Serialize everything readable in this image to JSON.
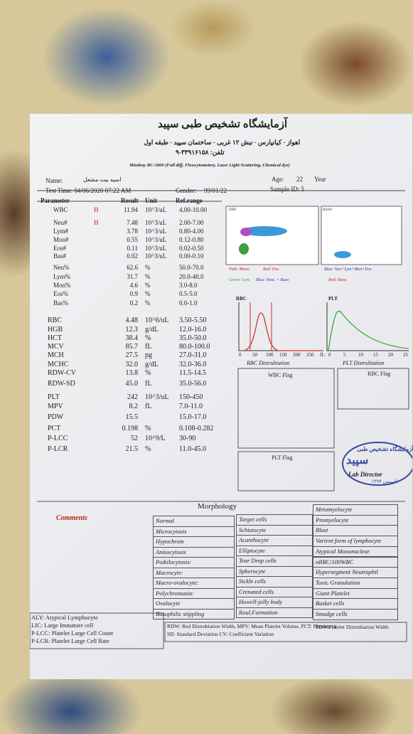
{
  "header": {
    "lab_name": "آزمایشگاه تشخیص طبی سپید",
    "address": "اهواز - کیانپارس - نبش ۱۲ غربی - ساختمان سپید - طبقه اول",
    "phone": "تلفن: ۳۳۹۱۶۱۵۸-۹",
    "instrument": "Mindray BC-5800 (Full diff, Flowcytometery, Laser Light Scattering, Chemical dye)"
  },
  "patient": {
    "name_label": "Name:",
    "name": "اسیه بیت مشعل",
    "age_label": "Age:",
    "age": "22",
    "age_unit": "Year",
    "test_time": "Test Time: 04/06/2020 07:22 AM",
    "gender": "Gender:",
    "date": "99/01/22",
    "sample_id": "Sample ID: 5"
  },
  "table": {
    "columns": [
      "Parameter",
      "Result",
      "Unit",
      "Ref.range"
    ],
    "rows": [
      {
        "name": "WBC",
        "flag": "H",
        "result": "11.94",
        "unit": "10^3/uL",
        "ref": "4.00-10.00"
      },
      {
        "name": "Neu#",
        "flag": "H",
        "result": "7.48",
        "unit": "10^3/uL",
        "ref": "2.00-7.00"
      },
      {
        "name": "Lym#",
        "result": "3.78",
        "unit": "10^3/uL",
        "ref": "0.80-4.00"
      },
      {
        "name": "Mon#",
        "result": "0.55",
        "unit": "10^3/uL",
        "ref": "0.12-0.80"
      },
      {
        "name": "Eos#",
        "result": "0.11",
        "unit": "10^3/uL",
        "ref": "0.02-0.50"
      },
      {
        "name": "Bas#",
        "result": "0.02",
        "unit": "10^3/uL",
        "ref": "0.00-0.10"
      },
      {
        "name": "Neu%",
        "result": "62.6",
        "unit": "%",
        "ref": "50.0-70.0"
      },
      {
        "name": "Lym%",
        "result": "31.7",
        "unit": "%",
        "ref": "20.0-40.0"
      },
      {
        "name": "Mon%",
        "result": "4.6",
        "unit": "%",
        "ref": "3.0-8.0"
      },
      {
        "name": "Eos%",
        "result": "0.9",
        "unit": "%",
        "ref": "0.5-5.0"
      },
      {
        "name": "Bas%",
        "result": "0.2",
        "unit": "%",
        "ref": "0.0-1.0"
      },
      {
        "name": "RBC",
        "result": "4.48",
        "unit": "10^6/uL",
        "ref": "3.50-5.50"
      },
      {
        "name": "HGB",
        "result": "12.3",
        "unit": "g/dL",
        "ref": "12.0-16.0"
      },
      {
        "name": "HCT",
        "result": "38.4",
        "unit": "%",
        "ref": "35.0-50.0"
      },
      {
        "name": "MCV",
        "result": "85.7",
        "unit": "fL",
        "ref": "80.0-100.0"
      },
      {
        "name": "MCH",
        "result": "27.5",
        "unit": "pg",
        "ref": "27.0-31.0"
      },
      {
        "name": "MCHC",
        "result": "32.0",
        "unit": "g/dL",
        "ref": "32.0-36.0"
      },
      {
        "name": "RDW-CV",
        "result": "13.8",
        "unit": "%",
        "ref": "11.5-14.5"
      },
      {
        "name": "RDW-SD",
        "result": "45.0",
        "unit": "fL",
        "ref": "35.0-56.0"
      },
      {
        "name": "PLT",
        "result": "242",
        "unit": "10^3/uL",
        "ref": "150-450"
      },
      {
        "name": "MPV",
        "result": "8.2",
        "unit": "fL",
        "ref": "7.0-11.0"
      },
      {
        "name": "PDW",
        "result": "15.5",
        "ref": "15.0-17.0"
      },
      {
        "name": "PCT",
        "result": "0.198",
        "unit": "%",
        "ref": "0.108-0.282"
      },
      {
        "name": "P-LCC",
        "result": "52",
        "unit": "10^9/L",
        "ref": "30-90"
      },
      {
        "name": "P-LCR",
        "result": "21.5",
        "unit": "%",
        "ref": "11.0-45.0"
      }
    ]
  },
  "graphs": {
    "diff": "DIFF",
    "baso": "BASO",
    "legend_diff_1": "Pink: Mono.",
    "legend_diff_2": "Red: Eos.",
    "legend_diff_3": "Green: Lym.",
    "legend_diff_4": "Blue: Neut. + Baso",
    "legend_baso_1": "Blue: Neu+Lym+Mon+Eos",
    "legend_baso_2": "Red: Baso.",
    "rbc_title": "RBC",
    "plt_title": "PLT",
    "rbc_ticks": [
      "0",
      "50",
      "100",
      "150",
      "200",
      "250",
      "fL"
    ],
    "plt_ticks": [
      "0",
      "5",
      "10",
      "15",
      "20",
      "25"
    ],
    "rbc_caption": "RBC Distrubiation",
    "plt_caption": "PLT Distrubiation"
  },
  "flags": {
    "wbc": "WBC Flag",
    "rbc": "RBC Flag",
    "plt": "PLT Flag"
  },
  "stamp": {
    "text": "آزمایشگاه تشخیص طبی",
    "name": "سپید",
    "role": "Lab Director",
    "year": "تاسیس ۱۳۹۴"
  },
  "morphology": {
    "title": "Morphology",
    "comments": "Comments",
    "col1": [
      "Normal",
      "Microcytosis",
      "Hypochrom",
      "Anisocytosis",
      "Poikilocytosis:",
      "Macrocyte:",
      "Macro-ovalocyte:",
      "Polychromasia:",
      "Ovalocyte",
      "Basophilic stippling"
    ],
    "col2": [
      "Target cells",
      "Schistocyte",
      "Acanthocyte",
      "Elliptocyte",
      "Tear Drop cells",
      "Spherocyte",
      "Sickle cells",
      "Crenated cells",
      "Howell-jolly body",
      "Roul.Formation"
    ],
    "col3": [
      "Metamyelocyte",
      "Promyelocyte",
      "Blast",
      "Varient form of lymphocyte",
      "Atypical Mononuclear",
      "nRBC/100WBC",
      "Hypersegment Neutrophil",
      "Toxic Granulation",
      "Giant Platelet",
      "Basket cells",
      "Smudge cells"
    ]
  },
  "footer": {
    "left": [
      "ALY: Atypical Lymphocyte",
      "LIC: Large Immature cell",
      "P-LCC: Platelet Large Cell Count",
      "P-LCR: Platelet Large Cell Rate"
    ],
    "right": [
      "RDW: Red Distrubiation Width, MPV: Mean Platelet Volume, PCT: Plateletcrit",
      "SD: Standard Deviation  CV: Coefficient Variation",
      "PDW:Platelet Distrubiation Width"
    ]
  }
}
